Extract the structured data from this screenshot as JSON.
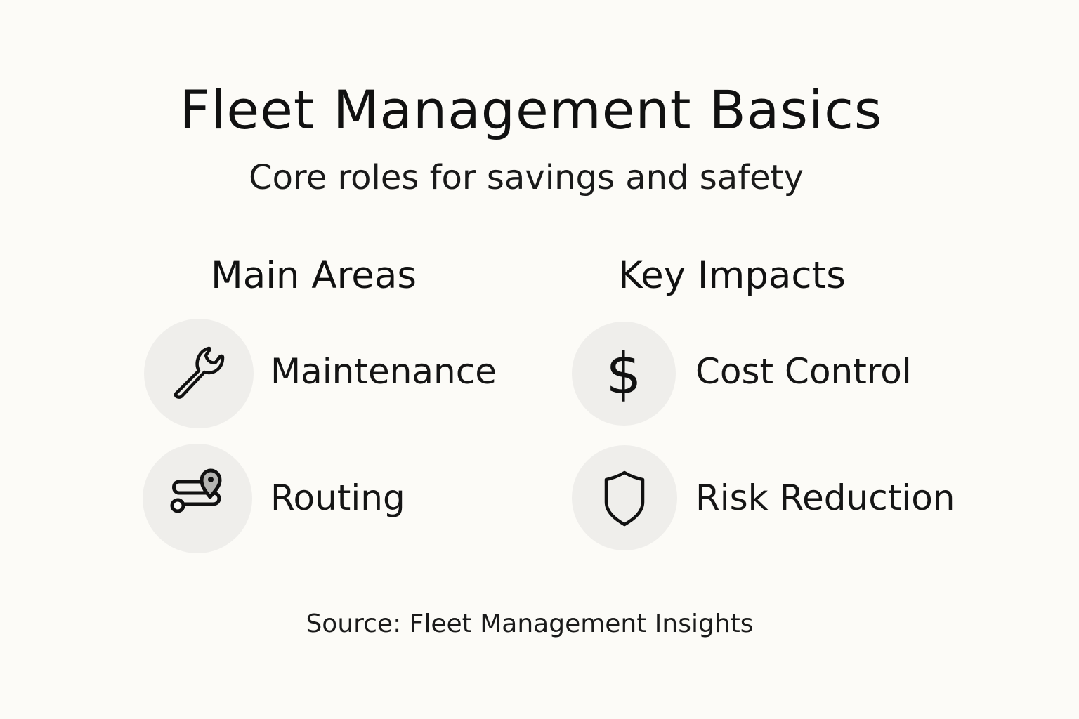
{
  "title": "Fleet Management Basics",
  "subtitle": "Core roles for savings and safety",
  "columns": [
    {
      "heading": "Main Areas",
      "items": [
        {
          "label": "Maintenance",
          "icon": "wrench-icon"
        },
        {
          "label": "Routing",
          "icon": "route-pin-icon"
        }
      ]
    },
    {
      "heading": "Key Impacts",
      "items": [
        {
          "label": "Cost Control",
          "icon": "dollar-icon"
        },
        {
          "label": "Risk Reduction",
          "icon": "shield-icon"
        }
      ]
    }
  ],
  "source": "Source: Fleet Management Insights",
  "colors": {
    "background": "#fcfbf7",
    "icon_circle": "#efeeeb",
    "pin_fill": "#b5b5b2"
  }
}
